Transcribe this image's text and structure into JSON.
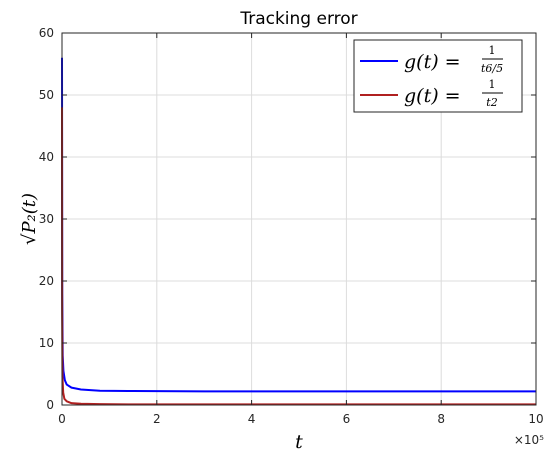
{
  "chart_data": {
    "type": "line",
    "title": "Tracking error",
    "xlabel": "t",
    "ylabel": "√P₂(t)",
    "xlim": [
      0,
      1000000
    ],
    "ylim": [
      0,
      60
    ],
    "x_exponent_label": "×10⁵",
    "x_tick_values": [
      0,
      200000,
      400000,
      600000,
      800000,
      1000000
    ],
    "x_tick_labels": [
      "0",
      "2",
      "4",
      "6",
      "8",
      "10"
    ],
    "y_tick_values": [
      0,
      10,
      20,
      30,
      40,
      50,
      60
    ],
    "y_tick_labels": [
      "0",
      "10",
      "20",
      "30",
      "40",
      "50",
      "60"
    ],
    "grid": true,
    "legend_position": "top-right",
    "series": [
      {
        "name": "g(t) = 1/t^(6/5)",
        "legend_lhs": "g(t) = ",
        "legend_num": "1",
        "legend_den": "t6/5",
        "color": "#0000ff",
        "x": [
          0,
          500,
          1500,
          3000,
          6000,
          10000,
          20000,
          40000,
          80000,
          150000,
          300000,
          500000,
          700000,
          1000000
        ],
        "y": [
          56,
          18,
          8,
          5.5,
          4,
          3.3,
          2.8,
          2.5,
          2.3,
          2.25,
          2.2,
          2.2,
          2.2,
          2.2
        ]
      },
      {
        "name": "g(t) = 1/t^2",
        "legend_lhs": "g(t) = ",
        "legend_num": "1",
        "legend_den": "t2",
        "color": "#b02020",
        "x": [
          0,
          300,
          1000,
          2500,
          5000,
          10000,
          20000,
          40000,
          80000,
          150000,
          300000,
          500000,
          700000,
          1000000
        ],
        "y": [
          48,
          15,
          4.5,
          2,
          1,
          0.6,
          0.3,
          0.2,
          0.15,
          0.1,
          0.1,
          0.1,
          0.1,
          0.1
        ]
      }
    ]
  }
}
